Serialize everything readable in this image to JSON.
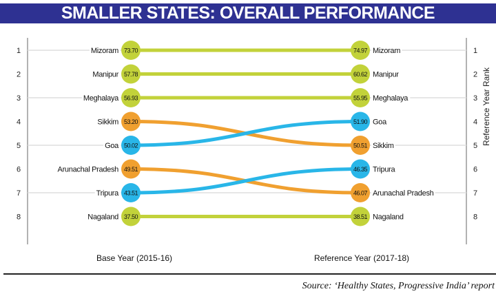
{
  "title": "SMALLER STATES: OVERALL PERFORMANCE",
  "source": "Source: ‘Healthy States, Progressive India’ report",
  "colors": {
    "title_bg": "#2e3192",
    "stable": "#c2d23a",
    "declined": "#f0a030",
    "improved": "#29b6e8"
  },
  "chart_data": {
    "type": "slope",
    "title": "SMALLER STATES: OVERALL PERFORMANCE",
    "left_axis_label": "Base Year (2015-16)",
    "right_axis_label": "Reference Year (2017-18)",
    "right_rank_label": "Reference Year Rank",
    "left_ranks": [
      "1",
      "2",
      "3",
      "4",
      "5",
      "6",
      "7",
      "8"
    ],
    "right_ranks": [
      "1",
      "2",
      "3",
      "4",
      "5",
      "6",
      "7",
      "8"
    ],
    "base": [
      {
        "state": "Mizoram",
        "score": "73.70",
        "rank": 1,
        "group": "stable"
      },
      {
        "state": "Manipur",
        "score": "57.78",
        "rank": 2,
        "group": "stable"
      },
      {
        "state": "Meghalaya",
        "score": "56.93",
        "rank": 3,
        "group": "stable"
      },
      {
        "state": "Sikkim",
        "score": "53.20",
        "rank": 4,
        "group": "declined"
      },
      {
        "state": "Goa",
        "score": "50.02",
        "rank": 5,
        "group": "improved"
      },
      {
        "state": "Arunachal Pradesh",
        "score": "49.51",
        "rank": 6,
        "group": "declined"
      },
      {
        "state": "Tripura",
        "score": "43.51",
        "rank": 7,
        "group": "improved"
      },
      {
        "state": "Nagaland",
        "score": "37.50",
        "rank": 8,
        "group": "stable"
      }
    ],
    "reference": [
      {
        "state": "Mizoram",
        "score": "74.97",
        "rank": 1,
        "group": "stable"
      },
      {
        "state": "Manipur",
        "score": "60.62",
        "rank": 2,
        "group": "stable"
      },
      {
        "state": "Meghalaya",
        "score": "55.95",
        "rank": 3,
        "group": "stable"
      },
      {
        "state": "Goa",
        "score": "51.90",
        "rank": 4,
        "group": "improved"
      },
      {
        "state": "Sikkim",
        "score": "50.51",
        "rank": 5,
        "group": "declined"
      },
      {
        "state": "Tripura",
        "score": "46.35",
        "rank": 6,
        "group": "improved"
      },
      {
        "state": "Arunachal Pradesh",
        "score": "46.07",
        "rank": 7,
        "group": "declined"
      },
      {
        "state": "Nagaland",
        "score": "38.51",
        "rank": 8,
        "group": "stable"
      }
    ]
  }
}
